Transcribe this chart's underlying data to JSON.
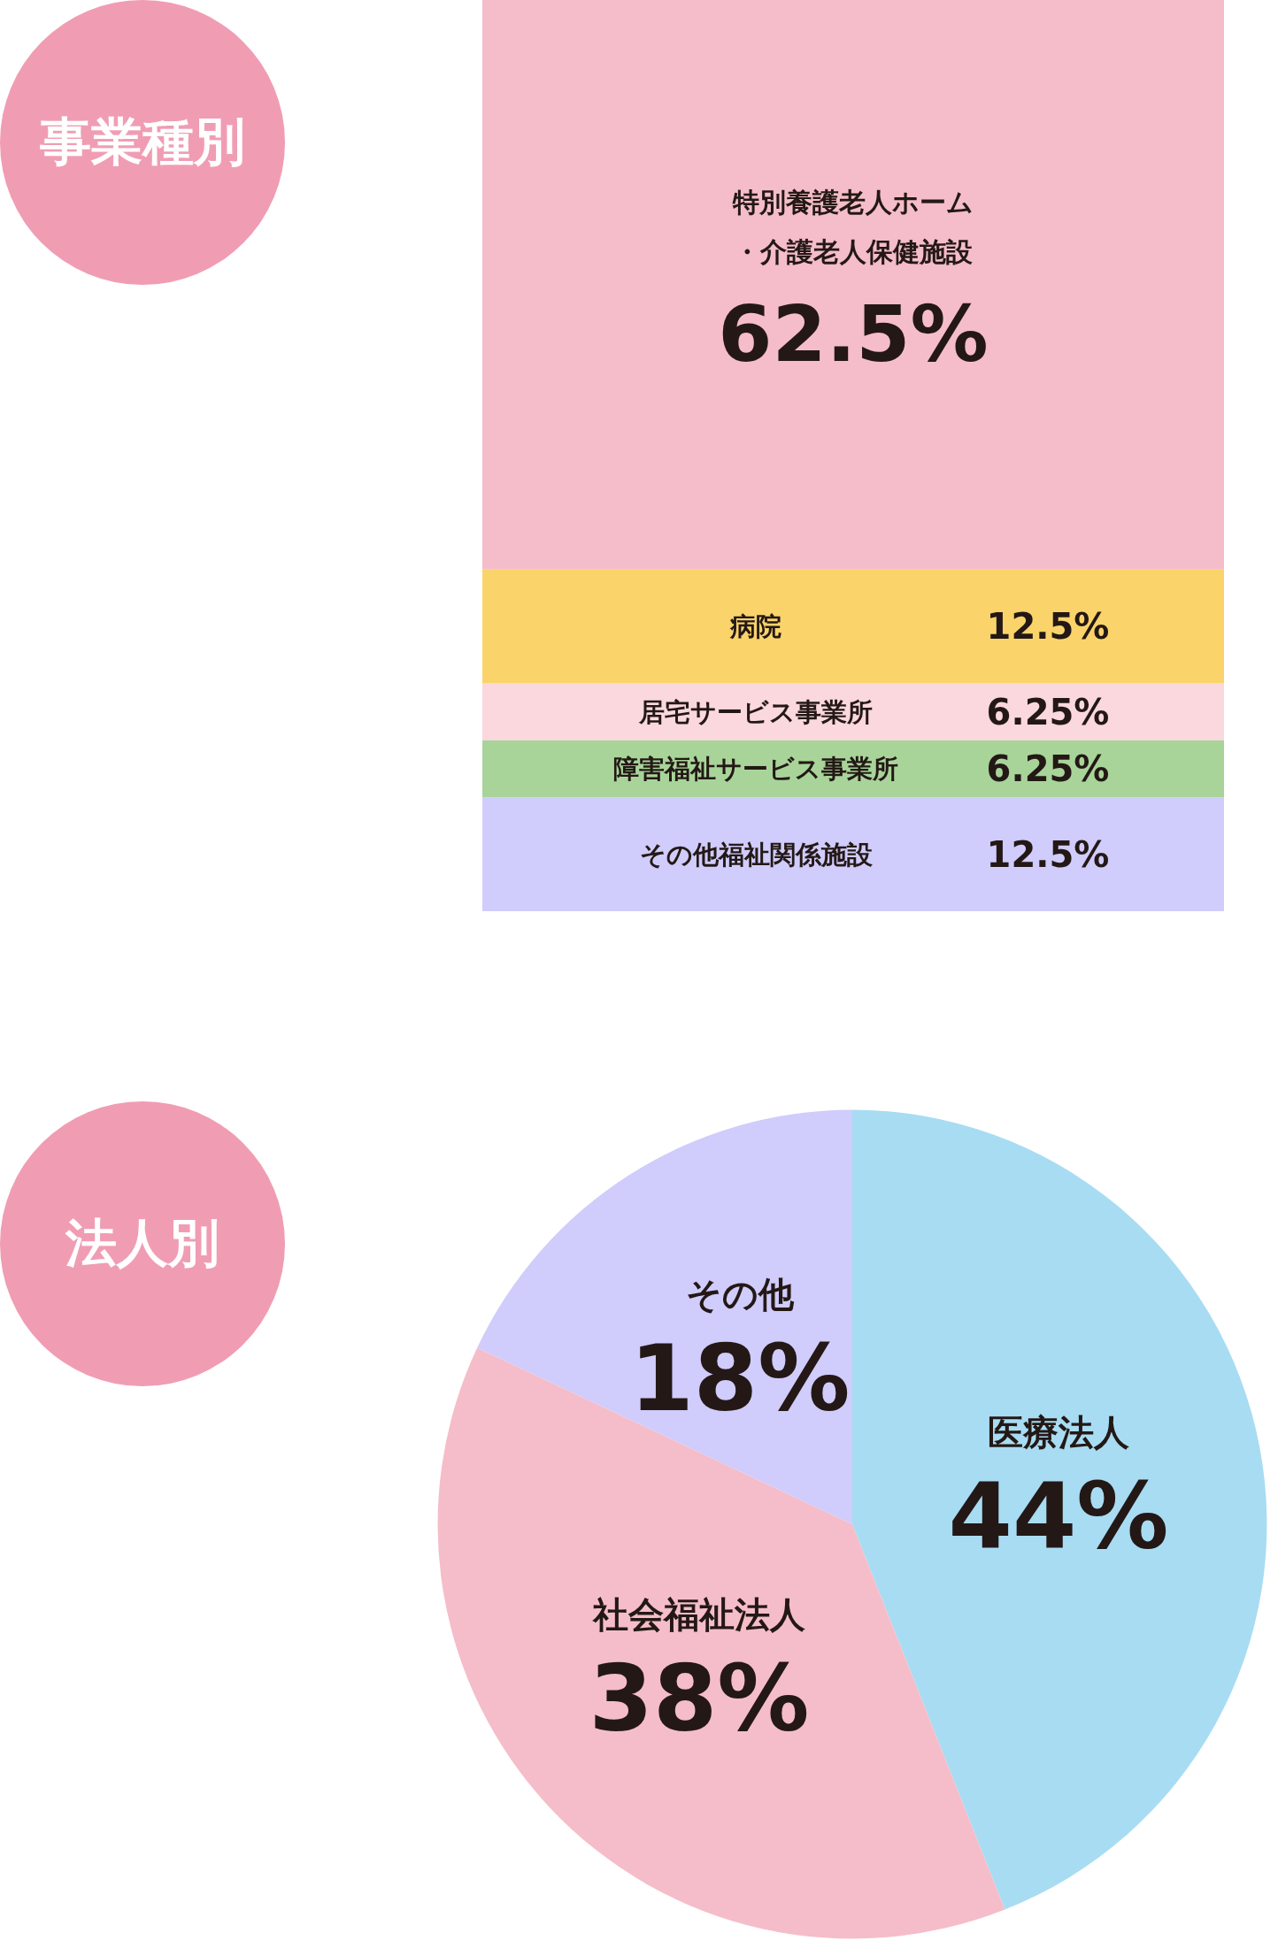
{
  "chart_data": [
    {
      "type": "bar",
      "title": "事業種別",
      "stacked": true,
      "categories": [
        null
      ],
      "ylim": [
        0,
        100
      ],
      "tick_labels": false,
      "legend": false,
      "series": [
        {
          "name": "その他福祉関係施設",
          "color": "#d0ccfb",
          "values": [
            12.5
          ],
          "value_labels": [
            "12.5%"
          ]
        },
        {
          "name": "障害福祉サービス事業所",
          "color": "#a8d49a",
          "values": [
            6.25
          ],
          "value_labels": [
            "6.25%"
          ]
        },
        {
          "name": "居宅サービス事業所",
          "color": "#fad8de",
          "values": [
            6.25
          ],
          "value_labels": [
            "6.25%"
          ]
        },
        {
          "name": "病院",
          "color": "#fad36b",
          "values": [
            12.5
          ],
          "value_labels": [
            "12.5%"
          ]
        },
        {
          "name": "特別養護老人ホーム・介護老人保健施設",
          "color": "#f5bdc9",
          "values": [
            62.5
          ],
          "value_labels": [
            "62.5%"
          ]
        }
      ]
    },
    {
      "type": "pie",
      "title": "法人別",
      "legend": false,
      "categories": [
        "医療法人",
        "社会福祉法人",
        "その他"
      ],
      "values": [
        44,
        38,
        18
      ],
      "colors": [
        "#a8dcf3",
        "#f5bdc9",
        "#d0ccfb"
      ],
      "value_labels": [
        "44%",
        "38%",
        "18%"
      ]
    }
  ]
}
